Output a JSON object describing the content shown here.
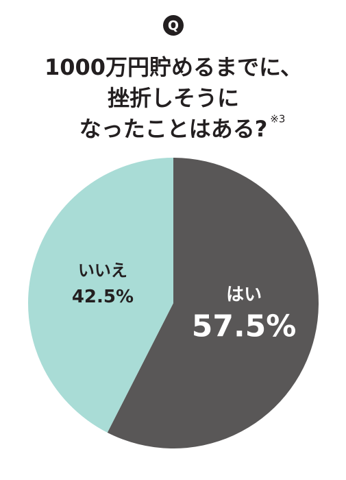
{
  "chart_data": {
    "type": "pie",
    "badge": "Q",
    "title": [
      "1000万円貯めるまでに、",
      "挫折しそうに",
      "なったことはある?"
    ],
    "note": "※3",
    "categories": [
      "はい",
      "いいえ"
    ],
    "values": [
      57.5,
      42.5
    ],
    "value_labels": [
      "57.5%",
      "42.5%"
    ],
    "colors": [
      "#595757",
      "#a9dcd6"
    ],
    "label_colors": [
      "#ffffff",
      "#231f20"
    ]
  }
}
